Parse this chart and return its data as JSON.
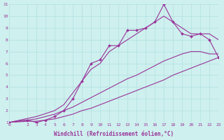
{
  "background_color": "#cef0ee",
  "grid_color": "#aadddd",
  "line_color": "#993399",
  "xlabel": "Windchill (Refroidissement éolien,°C)",
  "xlim": [
    0,
    23
  ],
  "ylim": [
    1,
    11
  ],
  "xticks": [
    0,
    2,
    3,
    4,
    5,
    6,
    7,
    8,
    9,
    10,
    11,
    12,
    13,
    14,
    15,
    16,
    17,
    18,
    19,
    20,
    21,
    22,
    23
  ],
  "yticks": [
    1,
    2,
    3,
    4,
    5,
    6,
    7,
    8,
    9,
    10,
    11
  ],
  "series": [
    {
      "x": [
        0,
        2,
        3,
        4,
        5,
        6,
        7,
        8,
        9,
        10,
        11,
        12,
        13,
        14,
        15,
        16,
        17,
        18,
        19,
        20,
        21,
        22,
        23
      ],
      "y": [
        1,
        1.1,
        1.1,
        1.2,
        1.3,
        1.5,
        1.7,
        2.0,
        2.2,
        2.5,
        2.8,
        3.1,
        3.4,
        3.7,
        4.0,
        4.3,
        4.6,
        5.0,
        5.3,
        5.6,
        5.9,
        6.2,
        6.5
      ],
      "marker": null,
      "linewidth": 0.8
    },
    {
      "x": [
        0,
        2,
        3,
        4,
        5,
        6,
        7,
        8,
        9,
        10,
        11,
        12,
        13,
        14,
        15,
        16,
        17,
        18,
        19,
        20,
        21,
        22,
        23
      ],
      "y": [
        1,
        1.2,
        1.3,
        1.5,
        1.7,
        2.0,
        2.3,
        2.7,
        3.1,
        3.5,
        3.9,
        4.3,
        4.7,
        5.0,
        5.4,
        5.8,
        6.2,
        6.5,
        6.8,
        7.0,
        7.0,
        6.8,
        6.8
      ],
      "marker": null,
      "linewidth": 0.8
    },
    {
      "x": [
        0,
        2,
        3,
        4,
        5,
        6,
        7,
        8,
        9,
        10,
        11,
        12,
        13,
        14,
        15,
        16,
        17,
        18,
        19,
        20,
        21,
        22,
        23
      ],
      "y": [
        1,
        1.2,
        1.0,
        1.2,
        1.5,
        2.0,
        3.0,
        4.5,
        6.0,
        6.3,
        7.5,
        7.5,
        8.8,
        8.8,
        9.0,
        9.5,
        11.0,
        9.5,
        8.5,
        8.3,
        8.5,
        8.0,
        6.5
      ],
      "marker": "D",
      "markersize": 2.0,
      "linewidth": 0.8
    },
    {
      "x": [
        0,
        3,
        5,
        6,
        7,
        8,
        9,
        10,
        11,
        12,
        13,
        14,
        15,
        16,
        17,
        18,
        19,
        20,
        21,
        22,
        23
      ],
      "y": [
        1,
        1.5,
        2.0,
        2.5,
        3.5,
        4.5,
        5.5,
        6.0,
        7.0,
        7.5,
        8.0,
        8.5,
        9.0,
        9.5,
        10.0,
        9.5,
        9.0,
        8.5,
        8.5,
        8.5,
        8.0
      ],
      "marker": null,
      "linewidth": 0.8
    }
  ],
  "axis_fontsize": 5.5,
  "tick_fontsize": 4.5
}
